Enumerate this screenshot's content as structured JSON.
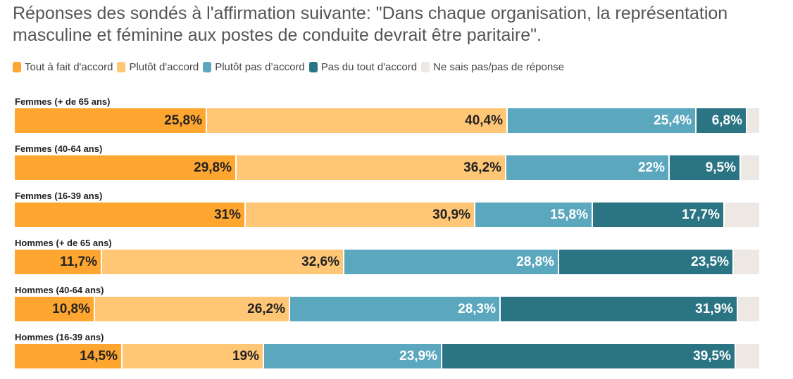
{
  "chart_data": {
    "type": "bar",
    "orientation": "horizontal",
    "stacked": true,
    "title": "Réponses des sondés à l'affirmation suivante: \"Dans chaque organisation, la représentation masculine et féminine aux postes de conduite devrait être paritaire\".",
    "legend_position": "top-left",
    "categories": [
      "Femmes (+ de 65 ans)",
      "Femmes (40-64 ans)",
      "Femmes (16-39 ans)",
      "Hommes (+ de 65 ans)",
      "Hommes (40-64 ans)",
      "Hommes (16-39 ans)"
    ],
    "series": [
      {
        "name": "Tout à fait d'accord",
        "color": "#FFA630",
        "text_color": "#222222",
        "values": [
          25.8,
          29.8,
          31,
          11.7,
          10.8,
          14.5
        ],
        "labels": [
          "25,8%",
          "29,8%",
          "31%",
          "11,7%",
          "10,8%",
          "14,5%"
        ]
      },
      {
        "name": "Plutôt d'accord",
        "color": "#FFC676",
        "text_color": "#222222",
        "values": [
          40.4,
          36.2,
          30.9,
          32.6,
          26.2,
          19
        ],
        "labels": [
          "40,4%",
          "36,2%",
          "30,9%",
          "32,6%",
          "26,2%",
          "19%"
        ]
      },
      {
        "name": "Plutôt pas d’accord",
        "color": "#5AA7BE",
        "text_color": "#ffffff",
        "values": [
          25.4,
          22,
          15.8,
          28.8,
          28.3,
          23.9
        ],
        "labels": [
          "25,4%",
          "22%",
          "15,8%",
          "28,8%",
          "28,3%",
          "23,9%"
        ]
      },
      {
        "name": "Pas du tout d'accord",
        "color": "#2B7483",
        "text_color": "#ffffff",
        "values": [
          6.8,
          9.5,
          17.7,
          23.5,
          31.9,
          39.5
        ],
        "labels": [
          "6,8%",
          "9,5%",
          "17,7%",
          "23,5%",
          "31,9%",
          "39,5%"
        ]
      },
      {
        "name": "Ne sais pas/pas de réponse",
        "color": "#EDE8E4",
        "text_color": "#222222",
        "values": [
          1.6,
          2.5,
          4.6,
          3.4,
          2.8,
          3.1
        ],
        "labels": [
          "",
          "",
          "",
          "",
          "",
          ""
        ]
      }
    ],
    "xlim": [
      0,
      100
    ]
  }
}
